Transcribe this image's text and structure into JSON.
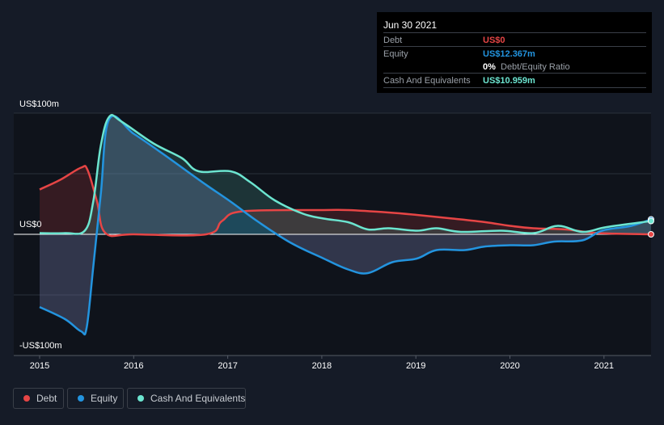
{
  "chart_data": {
    "type": "area",
    "title": "",
    "xlim": [
      2014.7,
      2021.5
    ],
    "ylim": [
      -100,
      100
    ],
    "y_tick_labels": [
      "US$100m",
      "US$0",
      "-US$100m"
    ],
    "x_ticks": [
      2015,
      2016,
      2017,
      2018,
      2019,
      2020,
      2021
    ],
    "x_tick_labels": [
      "2015",
      "2016",
      "2017",
      "2018",
      "2019",
      "2020",
      "2021"
    ],
    "grid": true,
    "legend_placement": "bottom-left",
    "colors": {
      "debt": "#e64545",
      "equity": "#2394df",
      "cash": "#6ce5d0"
    },
    "series": [
      {
        "name": "Debt",
        "key": "debt",
        "points": [
          [
            2015.0,
            37
          ],
          [
            2015.22,
            45
          ],
          [
            2015.44,
            55
          ],
          [
            2015.51,
            53
          ],
          [
            2015.61,
            27
          ],
          [
            2015.7,
            1
          ],
          [
            2016.0,
            0
          ],
          [
            2016.77,
            0
          ],
          [
            2016.94,
            11
          ],
          [
            2017.16,
            19
          ],
          [
            2018.02,
            20
          ],
          [
            2018.28,
            20
          ],
          [
            2018.71,
            18
          ],
          [
            2019.01,
            16
          ],
          [
            2019.39,
            13
          ],
          [
            2019.74,
            10
          ],
          [
            2020.0,
            7
          ],
          [
            2020.25,
            5
          ],
          [
            2020.6,
            4
          ],
          [
            2020.94,
            1
          ],
          [
            2021.5,
            0
          ]
        ]
      },
      {
        "name": "Equity",
        "key": "equity",
        "points": [
          [
            2015.0,
            -60
          ],
          [
            2015.27,
            -70
          ],
          [
            2015.44,
            -80
          ],
          [
            2015.5,
            -77
          ],
          [
            2015.57,
            -27
          ],
          [
            2015.65,
            33
          ],
          [
            2015.74,
            95
          ],
          [
            2016.0,
            83
          ],
          [
            2016.3,
            67
          ],
          [
            2016.73,
            43
          ],
          [
            2017.03,
            27
          ],
          [
            2017.33,
            10
          ],
          [
            2017.67,
            -7
          ],
          [
            2018.02,
            -20
          ],
          [
            2018.28,
            -29
          ],
          [
            2018.49,
            -32
          ],
          [
            2018.75,
            -23
          ],
          [
            2019.01,
            -20
          ],
          [
            2019.22,
            -13
          ],
          [
            2019.52,
            -13
          ],
          [
            2019.74,
            -10
          ],
          [
            2020.0,
            -9
          ],
          [
            2020.25,
            -9
          ],
          [
            2020.47,
            -6
          ],
          [
            2020.77,
            -5
          ],
          [
            2020.98,
            3
          ],
          [
            2021.29,
            7
          ],
          [
            2021.5,
            12.367
          ]
        ]
      },
      {
        "name": "Cash And Equivalents",
        "key": "cash",
        "points": [
          [
            2015.0,
            1
          ],
          [
            2015.27,
            1
          ],
          [
            2015.48,
            3
          ],
          [
            2015.57,
            27
          ],
          [
            2015.65,
            73
          ],
          [
            2015.74,
            97
          ],
          [
            2015.87,
            93
          ],
          [
            2016.21,
            75
          ],
          [
            2016.51,
            63
          ],
          [
            2016.69,
            52
          ],
          [
            2017.03,
            52
          ],
          [
            2017.24,
            43
          ],
          [
            2017.5,
            28
          ],
          [
            2017.8,
            17
          ],
          [
            2018.02,
            13
          ],
          [
            2018.28,
            10
          ],
          [
            2018.49,
            4
          ],
          [
            2018.71,
            5
          ],
          [
            2019.01,
            3
          ],
          [
            2019.22,
            5
          ],
          [
            2019.48,
            2
          ],
          [
            2019.91,
            3
          ],
          [
            2020.25,
            1
          ],
          [
            2020.51,
            7
          ],
          [
            2020.77,
            2
          ],
          [
            2021.03,
            6
          ],
          [
            2021.5,
            10.959
          ]
        ]
      }
    ]
  },
  "tooltip": {
    "date": "Jun 30 2021",
    "debt_label": "Debt",
    "debt_value": "US$0",
    "equity_label": "Equity",
    "equity_value": "US$12.367m",
    "ratio_value": "0%",
    "ratio_label": "Debt/Equity Ratio",
    "cash_label": "Cash And Equivalents",
    "cash_value": "US$10.959m"
  },
  "legend": [
    {
      "label": "Debt"
    },
    {
      "label": "Equity"
    },
    {
      "label": "Cash And Equivalents"
    }
  ]
}
